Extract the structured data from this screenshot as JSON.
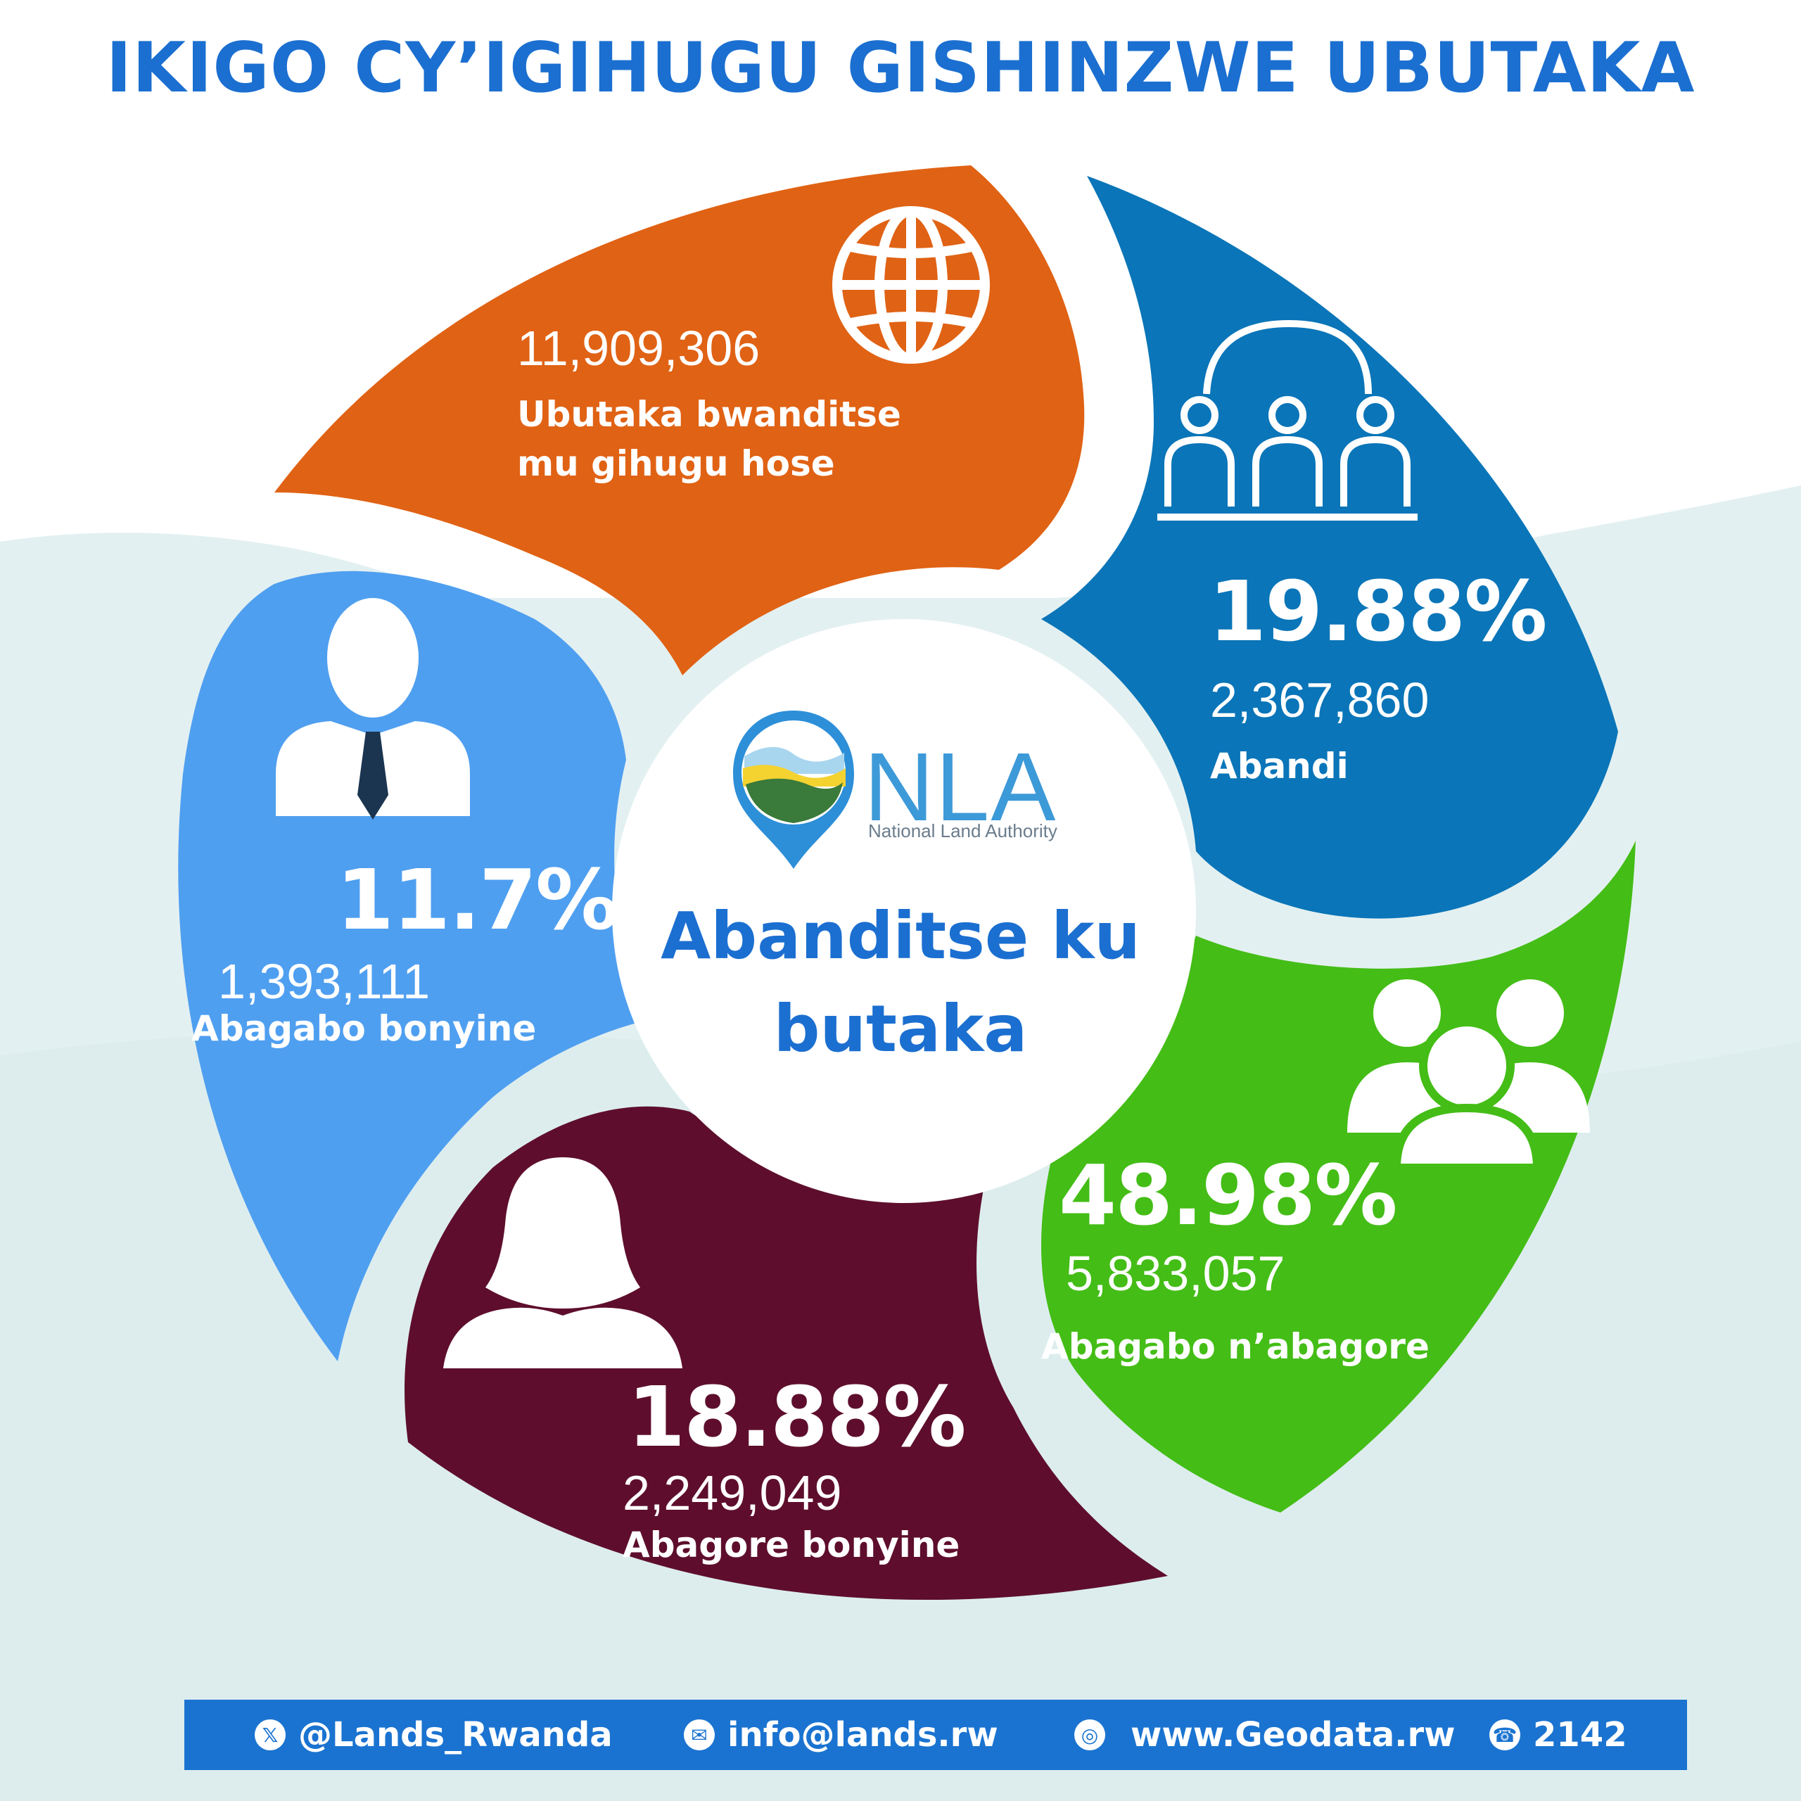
{
  "header": {
    "title": "IKIGO CY’IGIHUGU GISHINZWE UBUTAKA"
  },
  "center": {
    "logo_letters": "NLA",
    "logo_subtitle": "National Land Authority",
    "text_line1": "Abanditse ku",
    "text_line2": "butaka"
  },
  "segments": {
    "total": {
      "value": "11,909,306",
      "label_line1": "Ubutaka bwanditse",
      "label_line2": "mu gihugu hose",
      "color": "#e06214",
      "icon": "globe-icon"
    },
    "others": {
      "percent": "19.88%",
      "value": "2,367,860",
      "label": "Abandi",
      "color": "#0a75b8",
      "icon": "group-icon"
    },
    "men_women": {
      "percent": "48.98%",
      "value": "5,833,057",
      "label": "Abagabo n’abagore",
      "color": "#44bd16",
      "icon": "people-icon"
    },
    "women_only": {
      "percent": "18.88%",
      "value": "2,249,049",
      "label": "Abagore bonyine",
      "color": "#5e0e2c",
      "icon": "woman-icon"
    },
    "men_only": {
      "percent": "11.7%",
      "value": "1,393,111",
      "label": "Abagabo bonyine",
      "color": "#4f9ff0",
      "icon": "man-icon"
    }
  },
  "footer": {
    "twitter": "@Lands_Rwanda",
    "email": "info@lands.rw",
    "website": "www.Geodata.rw",
    "phone": "2142",
    "color": "#1a73d0"
  }
}
